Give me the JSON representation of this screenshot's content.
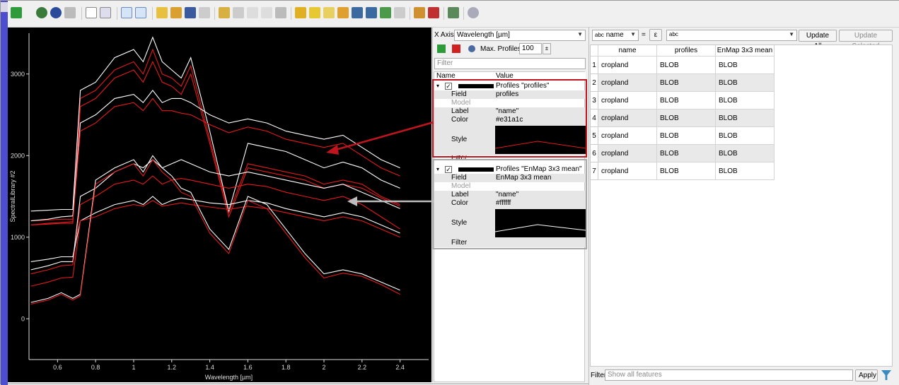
{
  "plot": {
    "ylabel": "SpectralLibrary #2",
    "xlabel": "Wavelength [µm]",
    "xticks": [
      "0.6",
      "0.8",
      "1",
      "1.2",
      "1.4",
      "1.6",
      "1.8",
      "2",
      "2.2",
      "2.4"
    ],
    "yticks": [
      "0",
      "1000",
      "2000",
      "3000"
    ],
    "xlim": [
      0.45,
      2.55
    ],
    "ylim": [
      -500,
      3500
    ],
    "colors": {
      "red": "#e31a1c",
      "white": "#ffffff"
    }
  },
  "chart_data": {
    "type": "line",
    "xlabel": "Wavelength [µm]",
    "ylabel": "SpectralLibrary #2",
    "xlim": [
      0.45,
      2.55
    ],
    "ylim": [
      -500,
      3500
    ],
    "grid": false,
    "x": [
      0.46,
      0.55,
      0.62,
      0.68,
      0.72,
      0.8,
      0.9,
      1.0,
      1.05,
      1.1,
      1.15,
      1.2,
      1.25,
      1.3,
      1.4,
      1.5,
      1.6,
      1.7,
      1.8,
      1.9,
      2.0,
      2.1,
      2.2,
      2.3,
      2.4
    ],
    "series": [
      {
        "color": "#e31a1c",
        "values": [
          1200,
          1210,
          1220,
          1220,
          2700,
          2800,
          3050,
          3150,
          3000,
          3300,
          3000,
          2950,
          2850,
          3100,
          2200,
          1300,
          1900,
          1850,
          1800,
          1750,
          1650,
          1700,
          1650,
          1500,
          1400
        ]
      },
      {
        "color": "#ffffff",
        "values": [
          1320,
          1330,
          1340,
          1340,
          2800,
          2900,
          3200,
          3300,
          3150,
          3450,
          3150,
          3050,
          2950,
          3200,
          2300,
          1320,
          2150,
          2100,
          2050,
          1950,
          1850,
          1920,
          1850,
          1700,
          1600
        ]
      },
      {
        "color": "#e31a1c",
        "values": [
          1150,
          1160,
          1170,
          1170,
          2600,
          2700,
          2950,
          3050,
          2900,
          3150,
          2900,
          2850,
          2750,
          3000,
          2150,
          1250,
          1850,
          1800,
          1750,
          1700,
          1600,
          1650,
          1600,
          1480,
          1380
        ]
      },
      {
        "color": "#ffffff",
        "values": [
          1200,
          1220,
          1250,
          1260,
          2400,
          2500,
          2700,
          2750,
          2650,
          2800,
          2650,
          2700,
          2700,
          2650,
          2500,
          2400,
          2450,
          2400,
          2300,
          2250,
          2200,
          2250,
          2100,
          1950,
          1850
        ]
      },
      {
        "color": "#e31a1c",
        "values": [
          1150,
          1170,
          1180,
          1190,
          2300,
          2400,
          2600,
          2650,
          2550,
          2700,
          2550,
          2550,
          2520,
          2500,
          2380,
          2280,
          2350,
          2300,
          2200,
          2150,
          2100,
          2150,
          2000,
          1850,
          1750
        ]
      },
      {
        "color": "#ffffff",
        "values": [
          600,
          650,
          700,
          700,
          1500,
          1600,
          1800,
          1900,
          1850,
          1950,
          1850,
          1900,
          1950,
          1900,
          1800,
          1750,
          1800,
          1750,
          1700,
          1650,
          1600,
          1650,
          1550,
          1450,
          1350
        ]
      },
      {
        "color": "#e31a1c",
        "values": [
          550,
          600,
          650,
          660,
          1400,
          1500,
          1650,
          1700,
          1650,
          1750,
          1650,
          1700,
          1720,
          1700,
          1650,
          1600,
          1650,
          1620,
          1550,
          1500,
          1450,
          1500,
          1400,
          1250,
          1100
        ]
      },
      {
        "color": "#ffffff",
        "values": [
          700,
          730,
          760,
          760,
          1200,
          1300,
          1400,
          1450,
          1400,
          1500,
          1400,
          1450,
          1480,
          1460,
          1420,
          1400,
          1450,
          1420,
          1350,
          1300,
          1250,
          1300,
          1250,
          1150,
          1050
        ]
      },
      {
        "color": "#e31a1c",
        "values": [
          400,
          450,
          500,
          510,
          1200,
          1250,
          1350,
          1400,
          1380,
          1450,
          1380,
          1400,
          1420,
          1400,
          1370,
          1340,
          1380,
          1350,
          1300,
          1250,
          1200,
          1250,
          1200,
          1100,
          1000
        ]
      },
      {
        "color": "#ffffff",
        "values": [
          200,
          250,
          320,
          250,
          300,
          1700,
          1850,
          1950,
          1800,
          2000,
          1850,
          1750,
          1600,
          1550,
          1100,
          850,
          1500,
          1400,
          1100,
          800,
          550,
          600,
          550,
          450,
          350
        ]
      },
      {
        "color": "#e31a1c",
        "values": [
          180,
          230,
          300,
          230,
          280,
          1650,
          1800,
          1900,
          1750,
          1950,
          1800,
          1700,
          1550,
          1500,
          1050,
          800,
          1450,
          1350,
          1050,
          750,
          500,
          560,
          520,
          420,
          300
        ]
      }
    ]
  },
  "middle": {
    "xaxis_label": "X Axis",
    "xaxis_value": "Wavelength [µm]",
    "max_profiles_label": "Max. Profiles",
    "max_profiles_value": "100",
    "filter_placeholder": "Filter",
    "col_name": "Name",
    "col_value": "Value",
    "profile1": {
      "title": "Profiles \"profiles\"",
      "rows": [
        {
          "k": "Field",
          "v": "profiles"
        },
        {
          "k": "Model",
          "v": ""
        },
        {
          "k": "Label",
          "v": "\"name\""
        },
        {
          "k": "Color",
          "v": "#e31a1c"
        },
        {
          "k": "Style",
          "v": ""
        },
        {
          "k": "Filter",
          "v": ""
        }
      ]
    },
    "profile2": {
      "title": "Profiles \"EnMap 3x3 mean\"",
      "rows": [
        {
          "k": "Field",
          "v": "EnMap 3x3 mean"
        },
        {
          "k": "Model",
          "v": ""
        },
        {
          "k": "Label",
          "v": "\"name\""
        },
        {
          "k": "Color",
          "v": "#ffffff"
        },
        {
          "k": "Style",
          "v": ""
        },
        {
          "k": "Filter",
          "v": ""
        }
      ]
    }
  },
  "right": {
    "field_combo": "name",
    "field_combo_prefix": "abc",
    "equals": "=",
    "expr_icon": "ε",
    "expr_input": "abc",
    "update_all": "Update All",
    "update_selected": "Update Selected",
    "columns": [
      "name",
      "profiles",
      "EnMap 3x3 mean"
    ],
    "rows": [
      {
        "n": "1",
        "name": "cropland",
        "profiles": "BLOB",
        "enmap": "BLOB"
      },
      {
        "n": "2",
        "name": "cropland",
        "profiles": "BLOB",
        "enmap": "BLOB"
      },
      {
        "n": "3",
        "name": "cropland",
        "profiles": "BLOB",
        "enmap": "BLOB"
      },
      {
        "n": "4",
        "name": "cropland",
        "profiles": "BLOB",
        "enmap": "BLOB"
      },
      {
        "n": "5",
        "name": "cropland",
        "profiles": "BLOB",
        "enmap": "BLOB"
      },
      {
        "n": "6",
        "name": "cropland",
        "profiles": "BLOB",
        "enmap": "BLOB"
      },
      {
        "n": "7",
        "name": "cropland",
        "profiles": "BLOB",
        "enmap": "BLOB"
      }
    ],
    "filter_label": "Filter",
    "filter_value": "Show all features",
    "apply": "Apply"
  }
}
